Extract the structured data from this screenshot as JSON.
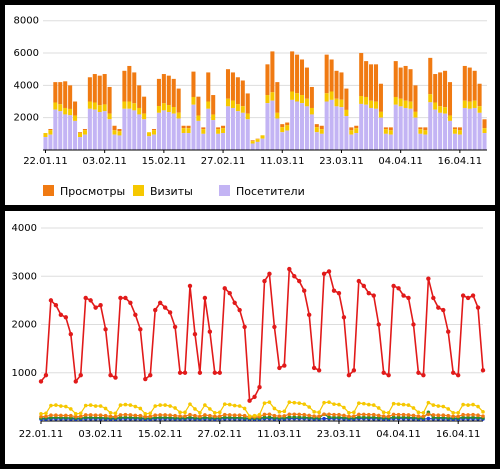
{
  "colors": {
    "views": "#f07a12",
    "visits": "#f6c800",
    "visitors": "#c3b4f4",
    "grid": "#dddddd",
    "line_main": "#e11a1a",
    "line_yellow": "#f6c800",
    "line_orange": "#f07a12",
    "line_green": "#2e8b2e",
    "line_blue": "#1a3ccf"
  },
  "chart_data": [
    {
      "type": "bar",
      "stacked": true,
      "x_tick_labels": [
        "22.01.11",
        "03.02.11",
        "15.02.11",
        "27.02.11",
        "11.03.11",
        "23.03.11",
        "04.04.11",
        "16.04.11"
      ],
      "y_tick_labels": [
        "2000",
        "4000",
        "6000",
        "8000"
      ],
      "y_ticks": [
        2000,
        4000,
        6000,
        8000
      ],
      "ylim": [
        0,
        8600
      ],
      "grid": true,
      "legend_position": "bottom",
      "legend": [
        {
          "key": "views",
          "label": "Просмотры"
        },
        {
          "key": "visits",
          "label": "Визиты"
        },
        {
          "key": "visitors",
          "label": "Посетители"
        }
      ],
      "visitors": [
        800,
        950,
        2500,
        2400,
        2200,
        2150,
        1800,
        800,
        950,
        2550,
        2500,
        2350,
        2400,
        1900,
        950,
        900,
        2550,
        2550,
        2450,
        2200,
        1900,
        850,
        950,
        2300,
        2450,
        2350,
        2250,
        1950,
        1050,
        1050,
        2800,
        1800,
        1000,
        2550,
        1850,
        1000,
        1050,
        2700,
        2600,
        2400,
        2300,
        1900,
        400,
        500,
        700,
        2900,
        3050,
        1950,
        1100,
        1200,
        3100,
        3000,
        2900,
        2700,
        2200,
        1100,
        1000,
        3000,
        3100,
        2700,
        2650,
        2100,
        950,
        1050,
        2850,
        2800,
        2600,
        2550,
        2000,
        1000,
        950,
        2800,
        2700,
        2600,
        2550,
        2000,
        1000,
        950,
        2950,
        2500,
        2300,
        2250,
        1800,
        1000,
        950,
        2600,
        2550,
        2600,
        2300,
        1050
      ],
      "visits": [
        250,
        280,
        440,
        430,
        400,
        390,
        330,
        250,
        280,
        450,
        440,
        420,
        420,
        350,
        270,
        260,
        450,
        450,
        440,
        400,
        350,
        250,
        280,
        420,
        440,
        430,
        410,
        360,
        300,
        300,
        480,
        330,
        290,
        450,
        340,
        290,
        300,
        470,
        460,
        430,
        410,
        350,
        150,
        170,
        210,
        500,
        520,
        350,
        310,
        330,
        520,
        510,
        500,
        470,
        400,
        310,
        290,
        510,
        520,
        470,
        460,
        380,
        270,
        300,
        490,
        480,
        450,
        440,
        360,
        290,
        270,
        480,
        470,
        450,
        440,
        360,
        290,
        270,
        500,
        440,
        410,
        400,
        330,
        290,
        270,
        450,
        440,
        450,
        410,
        300
      ],
      "views": [
        1000,
        1300,
        4200,
        4200,
        4250,
        4000,
        3000,
        1100,
        1300,
        4500,
        4700,
        4600,
        4700,
        3900,
        1500,
        1300,
        4900,
        5200,
        4800,
        4000,
        3300,
        1100,
        1300,
        4400,
        4700,
        4600,
        4400,
        3800,
        1500,
        1500,
        4850,
        3300,
        1400,
        4800,
        3400,
        1400,
        1500,
        5000,
        4800,
        4500,
        4300,
        3500,
        600,
        700,
        900,
        5300,
        6100,
        4200,
        1600,
        1700,
        6100,
        5900,
        5600,
        5100,
        3900,
        1600,
        1500,
        5900,
        5600,
        4900,
        4800,
        3800,
        1400,
        1500,
        6000,
        5500,
        5300,
        5300,
        4100,
        1400,
        1400,
        5500,
        5100,
        5200,
        5000,
        4000,
        1400,
        1400,
        5700,
        4700,
        4800,
        4900,
        4200,
        1400,
        1400,
        5200,
        5100,
        4900,
        4100,
        1900
      ]
    },
    {
      "type": "line",
      "x_tick_labels": [
        "22.01.11",
        "03.02.11",
        "15.02.11",
        "27.02.11",
        "11.03.11",
        "23.03.11",
        "04.04.11",
        "16.04.11"
      ],
      "y_tick_labels": [
        "1000",
        "2000",
        "3000",
        "4000"
      ],
      "y_ticks": [
        1000,
        2000,
        3000,
        4000
      ],
      "ylim": [
        0,
        4000
      ],
      "grid": true,
      "series": [
        {
          "color_key": "line_main",
          "values": [
            820,
            950,
            2500,
            2400,
            2200,
            2150,
            1800,
            820,
            950,
            2550,
            2500,
            2350,
            2400,
            1900,
            950,
            900,
            2550,
            2550,
            2450,
            2200,
            1900,
            870,
            950,
            2300,
            2450,
            2350,
            2250,
            1950,
            1000,
            1000,
            2800,
            1800,
            1000,
            2550,
            1850,
            1000,
            1000,
            2750,
            2650,
            2450,
            2300,
            1950,
            420,
            500,
            700,
            2900,
            3050,
            1950,
            1100,
            1150,
            3150,
            3000,
            2900,
            2700,
            2200,
            1100,
            1050,
            3050,
            3100,
            2700,
            2650,
            2150,
            950,
            1050,
            2900,
            2800,
            2650,
            2600,
            2000,
            1000,
            950,
            2800,
            2750,
            2600,
            2550,
            2000,
            1000,
            950,
            2950,
            2550,
            2350,
            2300,
            1850,
            1000,
            950,
            2600,
            2550,
            2600,
            2350,
            1050
          ]
        },
        {
          "color_key": "line_yellow",
          "values": [
            150,
            160,
            320,
            330,
            310,
            300,
            250,
            150,
            160,
            320,
            330,
            310,
            310,
            260,
            170,
            160,
            330,
            340,
            330,
            300,
            260,
            150,
            160,
            310,
            330,
            330,
            310,
            270,
            180,
            180,
            350,
            250,
            170,
            330,
            250,
            170,
            180,
            350,
            340,
            320,
            310,
            260,
            100,
            110,
            130,
            370,
            390,
            260,
            190,
            200,
            390,
            380,
            370,
            350,
            290,
            190,
            180,
            380,
            390,
            350,
            340,
            280,
            170,
            180,
            370,
            360,
            340,
            330,
            270,
            180,
            170,
            360,
            350,
            340,
            330,
            270,
            180,
            170,
            380,
            330,
            310,
            300,
            250,
            170,
            170,
            340,
            330,
            340,
            300,
            190
          ]
        },
        {
          "color_key": "line_orange",
          "values": [
            90,
            95,
            120,
            120,
            115,
            115,
            110,
            90,
            95,
            125,
            125,
            120,
            120,
            110,
            95,
            90,
            125,
            130,
            125,
            115,
            110,
            90,
            95,
            120,
            125,
            125,
            120,
            110,
            100,
            100,
            130,
            110,
            95,
            125,
            110,
            95,
            100,
            130,
            125,
            120,
            120,
            110,
            80,
            85,
            90,
            135,
            140,
            110,
            100,
            105,
            140,
            140,
            135,
            130,
            115,
            100,
            100,
            140,
            140,
            130,
            130,
            115,
            95,
            100,
            135,
            135,
            130,
            130,
            115,
            100,
            95,
            135,
            130,
            130,
            125,
            115,
            100,
            95,
            140,
            125,
            120,
            120,
            110,
            95,
            95,
            130,
            125,
            130,
            120,
            100
          ]
        },
        {
          "color_key": "line_green",
          "values": [
            60,
            62,
            70,
            72,
            70,
            68,
            66,
            60,
            62,
            72,
            72,
            70,
            70,
            66,
            62,
            60,
            72,
            74,
            72,
            70,
            66,
            60,
            62,
            70,
            72,
            72,
            70,
            66,
            64,
            64,
            74,
            66,
            62,
            72,
            66,
            62,
            64,
            74,
            72,
            70,
            70,
            66,
            56,
            58,
            60,
            76,
            78,
            66,
            64,
            66,
            80,
            80,
            78,
            76,
            70,
            64,
            64,
            140,
            80,
            76,
            76,
            70,
            62,
            64,
            78,
            76,
            74,
            74,
            68,
            64,
            62,
            76,
            76,
            74,
            74,
            68,
            64,
            62,
            180,
            72,
            70,
            70,
            66,
            62,
            62,
            74,
            72,
            74,
            70,
            64
          ]
        },
        {
          "color_key": "line_blue",
          "values": [
            40,
            40,
            45,
            45,
            44,
            44,
            42,
            40,
            40,
            46,
            46,
            45,
            45,
            42,
            40,
            40,
            46,
            47,
            46,
            45,
            42,
            40,
            40,
            45,
            46,
            46,
            45,
            42,
            41,
            41,
            47,
            42,
            40,
            46,
            42,
            40,
            41,
            47,
            46,
            45,
            45,
            42,
            38,
            38,
            39,
            48,
            49,
            42,
            41,
            42,
            50,
            50,
            49,
            48,
            45,
            41,
            41,
            49,
            50,
            48,
            48,
            45,
            40,
            41,
            49,
            48,
            47,
            47,
            44,
            41,
            40,
            48,
            48,
            47,
            47,
            44,
            41,
            40,
            50,
            46,
            45,
            45,
            42,
            40,
            40,
            47,
            46,
            47,
            45,
            41
          ]
        }
      ]
    }
  ]
}
